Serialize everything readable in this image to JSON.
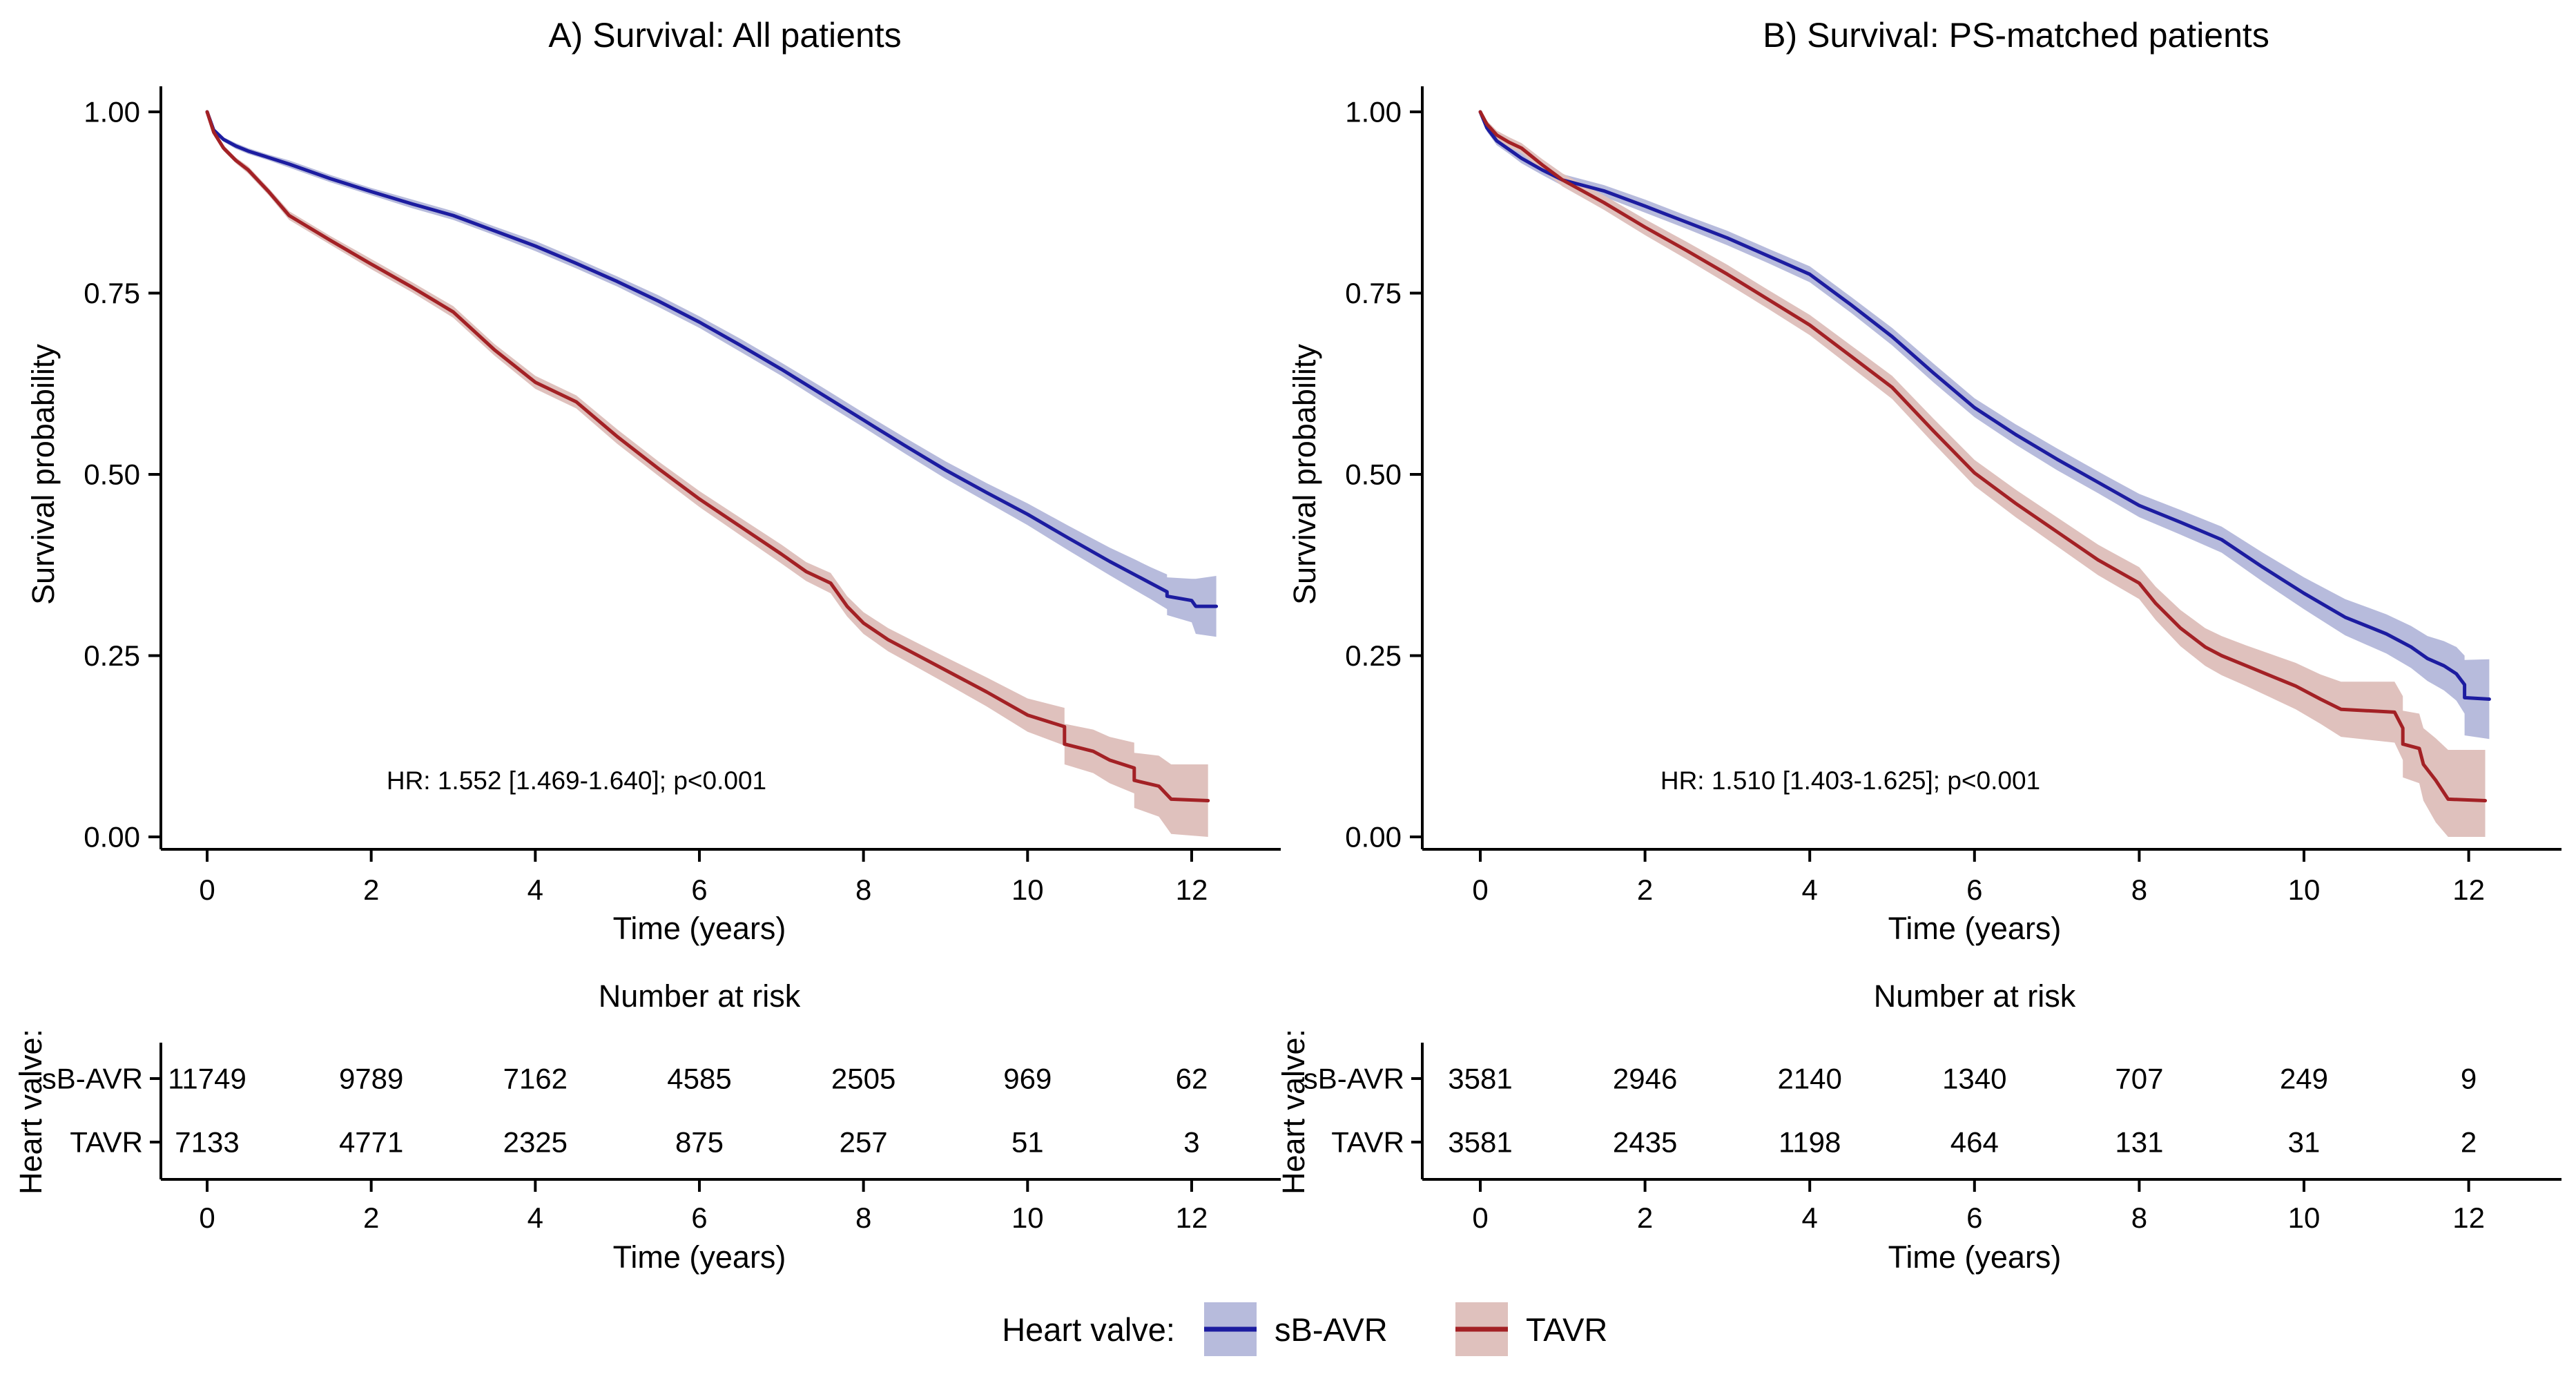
{
  "figure": {
    "background": "#ffffff",
    "legend": {
      "label": "Heart valve:",
      "items": [
        {
          "label": "sB-AVR",
          "line_color": "#1C1CA0",
          "band_color": "#B7BBDC"
        },
        {
          "label": "TAVR",
          "line_color": "#A32125",
          "band_color": "#DFC1BD"
        }
      ]
    }
  },
  "chart_data": [
    {
      "panel": "A",
      "type": "line",
      "title": "A) Survival: All patients",
      "xlabel": "Time (years)",
      "ylabel": "Survival probability",
      "annotation": "HR: 1.552 [1.469-1.640]; p<0.001",
      "xlim": [
        0,
        12.3
      ],
      "ylim": [
        0,
        1
      ],
      "grid": false,
      "legend_position": "bottom-shared",
      "xticks": [
        0,
        2,
        4,
        6,
        8,
        10,
        12
      ],
      "yticks": [
        {
          "v": 1.0,
          "label": "1.00"
        },
        {
          "v": 0.75,
          "label": "0.75"
        },
        {
          "v": 0.5,
          "label": "0.50"
        },
        {
          "v": 0.25,
          "label": "0.25"
        },
        {
          "v": 0.0,
          "label": "0.00"
        }
      ],
      "series": [
        {
          "name": "sB-AVR",
          "color": "#1C1CA0",
          "band_color": "#B7BBDC",
          "x": [
            0,
            0.08,
            0.2,
            0.35,
            0.5,
            0.75,
            1,
            1.5,
            2,
            2.5,
            3,
            3.5,
            4,
            4.5,
            5,
            5.5,
            6,
            6.5,
            7,
            7.5,
            8,
            8.5,
            9,
            9.5,
            10,
            10.5,
            11,
            11.3,
            11.5,
            11.7,
            11.7,
            12,
            12.05,
            12.3
          ],
          "y": [
            1,
            0.975,
            0.962,
            0.953,
            0.946,
            0.937,
            0.928,
            0.908,
            0.89,
            0.873,
            0.857,
            0.836,
            0.815,
            0.791,
            0.766,
            0.739,
            0.71,
            0.678,
            0.645,
            0.61,
            0.575,
            0.54,
            0.506,
            0.475,
            0.445,
            0.412,
            0.38,
            0.362,
            0.35,
            0.338,
            0.332,
            0.326,
            0.318,
            0.318
          ],
          "hw": [
            0.002,
            0.003,
            0.003,
            0.004,
            0.004,
            0.004,
            0.005,
            0.005,
            0.005,
            0.006,
            0.006,
            0.006,
            0.007,
            0.007,
            0.007,
            0.008,
            0.008,
            0.009,
            0.009,
            0.01,
            0.01,
            0.011,
            0.012,
            0.013,
            0.015,
            0.017,
            0.019,
            0.021,
            0.022,
            0.024,
            0.026,
            0.03,
            0.038,
            0.042
          ]
        },
        {
          "name": "TAVR",
          "color": "#A32125",
          "band_color": "#DFC1BD",
          "x": [
            0,
            0.08,
            0.2,
            0.35,
            0.5,
            0.75,
            1,
            1.5,
            2,
            2.5,
            3,
            3.5,
            4,
            4.5,
            5,
            5.5,
            6,
            6.5,
            7,
            7.3,
            7.6,
            7.8,
            8,
            8.3,
            8.7,
            9,
            9.5,
            10,
            10.45,
            10.45,
            10.8,
            11,
            11.3,
            11.3,
            11.6,
            11.75,
            12.2
          ],
          "y": [
            1,
            0.972,
            0.95,
            0.933,
            0.92,
            0.89,
            0.857,
            0.823,
            0.79,
            0.758,
            0.724,
            0.672,
            0.627,
            0.6,
            0.552,
            0.508,
            0.466,
            0.428,
            0.39,
            0.366,
            0.35,
            0.318,
            0.295,
            0.272,
            0.248,
            0.23,
            0.2,
            0.168,
            0.152,
            0.128,
            0.118,
            0.106,
            0.095,
            0.078,
            0.07,
            0.052,
            0.05
          ],
          "hw": [
            0.002,
            0.003,
            0.004,
            0.004,
            0.005,
            0.005,
            0.006,
            0.006,
            0.007,
            0.007,
            0.008,
            0.008,
            0.009,
            0.009,
            0.01,
            0.01,
            0.011,
            0.012,
            0.013,
            0.013,
            0.014,
            0.014,
            0.015,
            0.016,
            0.017,
            0.018,
            0.02,
            0.023,
            0.026,
            0.028,
            0.03,
            0.032,
            0.035,
            0.038,
            0.042,
            0.048,
            0.05
          ]
        }
      ],
      "risk_table": {
        "title": "Number at risk",
        "ylabel": "Heart valve:",
        "xlabel": "Time (years)",
        "times": [
          0,
          2,
          4,
          6,
          8,
          10,
          12
        ],
        "rows": [
          {
            "label": "sB-AVR",
            "values": [
              "11749",
              "9789",
              "7162",
              "4585",
              "2505",
              "969",
              "62"
            ]
          },
          {
            "label": "TAVR",
            "values": [
              "7133",
              "4771",
              "2325",
              "875",
              "257",
              "51",
              "3"
            ]
          }
        ]
      }
    },
    {
      "panel": "B",
      "type": "line",
      "title": "B) Survival: PS-matched patients",
      "xlabel": "Time (years)",
      "ylabel": "Survival probability",
      "annotation": "HR: 1.510 [1.403-1.625]; p<0.001",
      "xlim": [
        0,
        12.3
      ],
      "ylim": [
        0,
        1
      ],
      "grid": false,
      "legend_position": "bottom-shared",
      "xticks": [
        0,
        2,
        4,
        6,
        8,
        10,
        12
      ],
      "yticks": [
        {
          "v": 1.0,
          "label": "1.00"
        },
        {
          "v": 0.75,
          "label": "0.75"
        },
        {
          "v": 0.5,
          "label": "0.50"
        },
        {
          "v": 0.25,
          "label": "0.25"
        },
        {
          "v": 0.0,
          "label": "0.00"
        }
      ],
      "series": [
        {
          "name": "sB-AVR",
          "color": "#1C1CA0",
          "band_color": "#B7BBDC",
          "x": [
            0,
            0.08,
            0.2,
            0.35,
            0.5,
            0.75,
            1,
            1.5,
            2,
            2.5,
            3,
            3.5,
            4,
            4.5,
            5,
            5.5,
            6,
            6.5,
            7,
            7.5,
            8,
            8.5,
            9,
            9.5,
            10,
            10.5,
            11,
            11.3,
            11.5,
            11.7,
            11.85,
            11.95,
            11.95,
            12.25
          ],
          "y": [
            1,
            0.978,
            0.96,
            0.948,
            0.936,
            0.92,
            0.906,
            0.891,
            0.87,
            0.848,
            0.826,
            0.801,
            0.776,
            0.734,
            0.69,
            0.64,
            0.592,
            0.555,
            0.521,
            0.489,
            0.457,
            0.434,
            0.41,
            0.372,
            0.336,
            0.303,
            0.28,
            0.262,
            0.246,
            0.236,
            0.225,
            0.21,
            0.192,
            0.19
          ],
          "hw": [
            0.003,
            0.005,
            0.006,
            0.006,
            0.007,
            0.007,
            0.008,
            0.008,
            0.009,
            0.009,
            0.01,
            0.01,
            0.011,
            0.011,
            0.012,
            0.013,
            0.013,
            0.014,
            0.015,
            0.015,
            0.016,
            0.017,
            0.018,
            0.02,
            0.022,
            0.025,
            0.027,
            0.029,
            0.031,
            0.034,
            0.037,
            0.04,
            0.052,
            0.055
          ]
        },
        {
          "name": "TAVR",
          "color": "#A32125",
          "band_color": "#DFC1BD",
          "x": [
            0,
            0.08,
            0.2,
            0.35,
            0.5,
            0.75,
            1,
            1.5,
            2,
            2.5,
            3,
            3.5,
            4,
            4.5,
            5,
            5.5,
            6,
            6.5,
            7,
            7.5,
            8,
            8.2,
            8.5,
            8.8,
            9,
            9.3,
            9.6,
            9.9,
            10.2,
            10.45,
            11.1,
            11.2,
            11.2,
            11.4,
            11.45,
            11.6,
            11.75,
            12.2
          ],
          "y": [
            1,
            0.983,
            0.968,
            0.958,
            0.95,
            0.927,
            0.906,
            0.875,
            0.841,
            0.809,
            0.776,
            0.741,
            0.706,
            0.663,
            0.62,
            0.56,
            0.502,
            0.46,
            0.421,
            0.382,
            0.35,
            0.322,
            0.288,
            0.262,
            0.25,
            0.236,
            0.222,
            0.208,
            0.19,
            0.176,
            0.172,
            0.15,
            0.128,
            0.122,
            0.1,
            0.078,
            0.052,
            0.05
          ],
          "hw": [
            0.003,
            0.005,
            0.006,
            0.007,
            0.007,
            0.008,
            0.009,
            0.01,
            0.011,
            0.012,
            0.013,
            0.013,
            0.014,
            0.015,
            0.016,
            0.017,
            0.018,
            0.019,
            0.02,
            0.021,
            0.022,
            0.023,
            0.025,
            0.026,
            0.027,
            0.028,
            0.03,
            0.032,
            0.034,
            0.038,
            0.042,
            0.044,
            0.046,
            0.048,
            0.05,
            0.058,
            0.068,
            0.07
          ]
        }
      ],
      "risk_table": {
        "title": "Number at risk",
        "ylabel": "Heart valve:",
        "xlabel": "Time (years)",
        "times": [
          0,
          2,
          4,
          6,
          8,
          10,
          12
        ],
        "rows": [
          {
            "label": "sB-AVR",
            "values": [
              "3581",
              "2946",
              "2140",
              "1340",
              "707",
              "249",
              "9"
            ]
          },
          {
            "label": "TAVR",
            "values": [
              "3581",
              "2435",
              "1198",
              "464",
              "131",
              "31",
              "2"
            ]
          }
        ]
      }
    }
  ]
}
